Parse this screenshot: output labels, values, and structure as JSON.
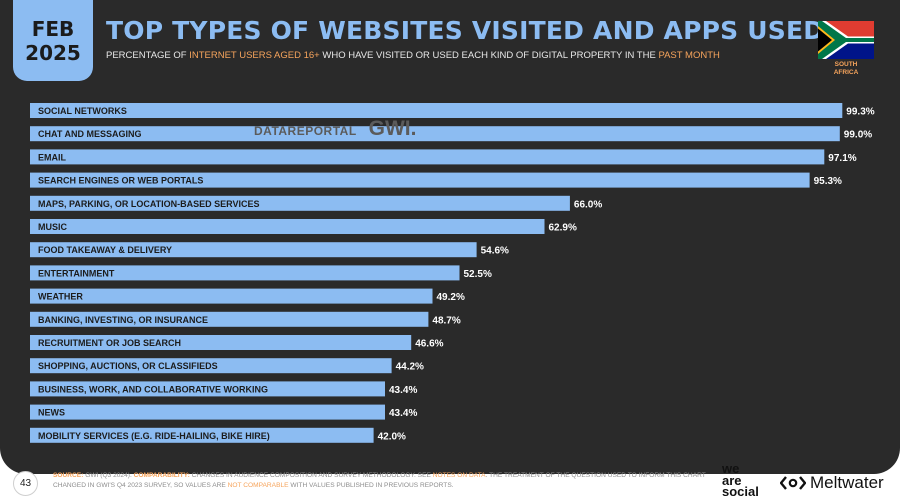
{
  "date": {
    "month": "FEB",
    "year": "2025"
  },
  "title": "TOP TYPES OF WEBSITES VISITED AND APPS USED",
  "subtitle": {
    "part1": "PERCENTAGE OF ",
    "highlight1": "INTERNET USERS AGED 16+",
    "part2": " WHO HAVE VISITED OR USED EACH KIND OF DIGITAL PROPERTY IN THE ",
    "highlight2": "PAST MONTH"
  },
  "country": {
    "line1": "SOUTH",
    "line2": "AFRICA"
  },
  "watermark": {
    "datareportal": "DATAREPORTAL",
    "gwi": "GWI."
  },
  "chart_data": {
    "type": "bar",
    "orientation": "horizontal",
    "categories": [
      "SOCIAL NETWORKS",
      "CHAT AND MESSAGING",
      "EMAIL",
      "SEARCH ENGINES OR WEB PORTALS",
      "MAPS, PARKING, OR LOCATION-BASED SERVICES",
      "MUSIC",
      "FOOD TAKEAWAY & DELIVERY",
      "ENTERTAINMENT",
      "WEATHER",
      "BANKING, INVESTING, OR INSURANCE",
      "RECRUITMENT OR JOB SEARCH",
      "SHOPPING, AUCTIONS, OR CLASSIFIEDS",
      "BUSINESS, WORK, AND COLLABORATIVE WORKING",
      "NEWS",
      "MOBILITY SERVICES (E.G. RIDE-HAILING, BIKE HIRE)"
    ],
    "values": [
      99.3,
      99.0,
      97.1,
      95.3,
      66.0,
      62.9,
      54.6,
      52.5,
      49.2,
      48.7,
      46.6,
      44.2,
      43.4,
      43.4,
      42.0
    ],
    "value_labels": [
      "99.3%",
      "99.0%",
      "97.1%",
      "95.3%",
      "66.0%",
      "62.9%",
      "54.6%",
      "52.5%",
      "49.2%",
      "48.7%",
      "46.6%",
      "44.2%",
      "43.4%",
      "43.4%",
      "42.0%"
    ],
    "xlim": [
      0,
      100
    ],
    "bar_color": "#8cbcf2",
    "title": "TOP TYPES OF WEBSITES VISITED AND APPS USED"
  },
  "footer": {
    "page_number": "43",
    "source_label": "SOURCE:",
    "source_text": " GWI (Q3 2024). ",
    "comparability_label": "COMPARABILITY:",
    "comparability_text1": " CHANGES IN AUDIENCE COMPOSITION AND SURVEY METHODOLOGY. SEE ",
    "notes_link": "NOTES ON DATA",
    "comparability_text2": ". THE TREATMENT OF THE QUESTION USED TO INFORM THIS CHART CHANGED IN GWI'S Q4 2023 SURVEY, SO VALUES ARE ",
    "not_comparable": "NOT COMPARABLE",
    "comparability_text3": " WITH VALUES PUBLISHED IN PREVIOUS REPORTS.",
    "brand1": {
      "line1": "we",
      "line2": "are",
      "line3": "social"
    },
    "brand2": "Meltwater"
  },
  "colors": {
    "panel": "#2a2a2a",
    "accent_blue": "#8cbcf2",
    "accent_orange": "#f6a45c"
  }
}
